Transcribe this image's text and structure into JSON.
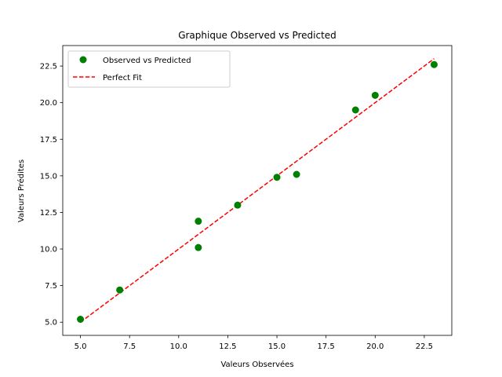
{
  "chart_data": {
    "type": "scatter",
    "title": "Graphique Observed vs Predicted",
    "xlabel": "Valeurs Observées",
    "ylabel": "Valeurs Prédites",
    "xlim": [
      4.1,
      23.9
    ],
    "ylim": [
      4.1,
      23.9
    ],
    "xticks": [
      5.0,
      7.5,
      10.0,
      12.5,
      15.0,
      17.5,
      20.0,
      22.5
    ],
    "yticks": [
      5.0,
      7.5,
      10.0,
      12.5,
      15.0,
      17.5,
      20.0,
      22.5
    ],
    "xtick_labels": [
      "5.0",
      "7.5",
      "10.0",
      "12.5",
      "15.0",
      "17.5",
      "20.0",
      "22.5"
    ],
    "ytick_labels": [
      "5.0",
      "7.5",
      "10.0",
      "12.5",
      "15.0",
      "17.5",
      "20.0",
      "22.5"
    ],
    "grid": false,
    "legend_position": "top-left",
    "series": [
      {
        "name": "Observed vs Predicted",
        "kind": "scatter",
        "color": "#008000",
        "points": [
          {
            "x": 5,
            "y": 5.2
          },
          {
            "x": 7,
            "y": 7.2
          },
          {
            "x": 11,
            "y": 11.9
          },
          {
            "x": 11,
            "y": 10.1
          },
          {
            "x": 13,
            "y": 13.0
          },
          {
            "x": 15,
            "y": 14.9
          },
          {
            "x": 16,
            "y": 15.1
          },
          {
            "x": 19,
            "y": 19.5
          },
          {
            "x": 20,
            "y": 20.5
          },
          {
            "x": 23,
            "y": 22.6
          }
        ]
      },
      {
        "name": "Perfect Fit",
        "kind": "line",
        "style": "dashed",
        "color": "#ff0000",
        "points": [
          {
            "x": 5,
            "y": 5
          },
          {
            "x": 23,
            "y": 23
          }
        ]
      }
    ]
  }
}
